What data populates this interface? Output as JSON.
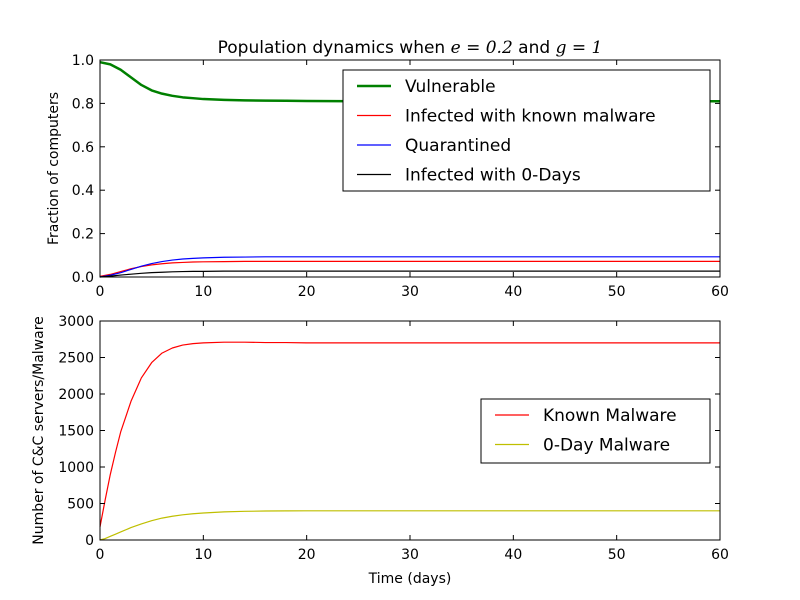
{
  "chart_data": [
    {
      "type": "line",
      "title": {
        "prefix": "Population dynamics when ",
        "var1": "e",
        "eq1": " = 0.2",
        "mid": " and ",
        "var2": "g",
        "eq2": " = 1"
      },
      "xlabel": "",
      "ylabel": "Fraction of computers",
      "xlim": [
        0,
        60
      ],
      "ylim": [
        0,
        1
      ],
      "xticks": [
        0,
        10,
        20,
        30,
        40,
        50,
        60
      ],
      "yticks": [
        0.0,
        0.2,
        0.4,
        0.6,
        0.8,
        1.0
      ],
      "ytick_labels": [
        "0.0",
        "0.2",
        "0.4",
        "0.6",
        "0.8",
        "1.0"
      ],
      "legend_position": "top-right",
      "x": [
        0,
        1,
        2,
        3,
        4,
        5,
        6,
        7,
        8,
        9,
        10,
        12,
        14,
        16,
        18,
        20,
        25,
        30,
        35,
        40,
        45,
        50,
        55,
        60
      ],
      "series": [
        {
          "name": "Vulnerable",
          "color": "#008000",
          "width": "thick",
          "values": [
            0.99,
            0.98,
            0.955,
            0.92,
            0.885,
            0.86,
            0.845,
            0.835,
            0.828,
            0.824,
            0.82,
            0.816,
            0.814,
            0.813,
            0.812,
            0.811,
            0.81,
            0.81,
            0.81,
            0.81,
            0.81,
            0.81,
            0.81,
            0.81
          ]
        },
        {
          "name": "Infected with known malware",
          "color": "#ff0000",
          "width": "thin",
          "values": [
            0.003,
            0.012,
            0.025,
            0.038,
            0.048,
            0.056,
            0.061,
            0.065,
            0.067,
            0.069,
            0.07,
            0.071,
            0.072,
            0.072,
            0.072,
            0.072,
            0.072,
            0.072,
            0.072,
            0.072,
            0.072,
            0.072,
            0.072,
            0.072
          ]
        },
        {
          "name": "Quarantined",
          "color": "#0000ff",
          "width": "thin",
          "values": [
            0.0,
            0.008,
            0.02,
            0.035,
            0.05,
            0.062,
            0.071,
            0.078,
            0.083,
            0.086,
            0.088,
            0.091,
            0.092,
            0.093,
            0.093,
            0.093,
            0.093,
            0.093,
            0.093,
            0.093,
            0.093,
            0.093,
            0.093,
            0.093
          ]
        },
        {
          "name": "Infected with 0-Days",
          "color": "#000000",
          "width": "thin",
          "values": [
            0.0,
            0.004,
            0.009,
            0.013,
            0.017,
            0.02,
            0.022,
            0.024,
            0.025,
            0.026,
            0.026,
            0.027,
            0.027,
            0.027,
            0.027,
            0.027,
            0.027,
            0.027,
            0.027,
            0.027,
            0.027,
            0.027,
            0.027,
            0.027
          ]
        }
      ]
    },
    {
      "type": "line",
      "title": "",
      "xlabel": "Time (days)",
      "ylabel": "Number of C&C servers/Malware",
      "xlim": [
        0,
        60
      ],
      "ylim": [
        0,
        3000
      ],
      "xticks": [
        0,
        10,
        20,
        30,
        40,
        50,
        60
      ],
      "yticks": [
        0,
        500,
        1000,
        1500,
        2000,
        2500,
        3000
      ],
      "ytick_labels": [
        "0",
        "500",
        "1000",
        "1500",
        "2000",
        "2500",
        "3000"
      ],
      "legend_position": "center-right",
      "x": [
        0,
        0.5,
        1,
        1.5,
        2,
        3,
        4,
        5,
        6,
        7,
        8,
        9,
        10,
        12,
        14,
        16,
        18,
        20,
        25,
        30,
        35,
        40,
        45,
        50,
        55,
        60
      ],
      "series": [
        {
          "name": "Known Malware",
          "color": "#ff0000",
          "width": "thin",
          "values": [
            180,
            550,
            900,
            1200,
            1480,
            1900,
            2220,
            2430,
            2560,
            2630,
            2670,
            2690,
            2700,
            2710,
            2710,
            2705,
            2705,
            2700,
            2700,
            2700,
            2700,
            2700,
            2700,
            2700,
            2700,
            2700
          ]
        },
        {
          "name": "0-Day Malware",
          "color": "#bfbf00",
          "width": "thin",
          "values": [
            0,
            20,
            50,
            80,
            110,
            170,
            220,
            265,
            300,
            325,
            345,
            360,
            370,
            385,
            393,
            397,
            399,
            400,
            400,
            400,
            400,
            400,
            400,
            400,
            400,
            400
          ]
        }
      ]
    }
  ]
}
